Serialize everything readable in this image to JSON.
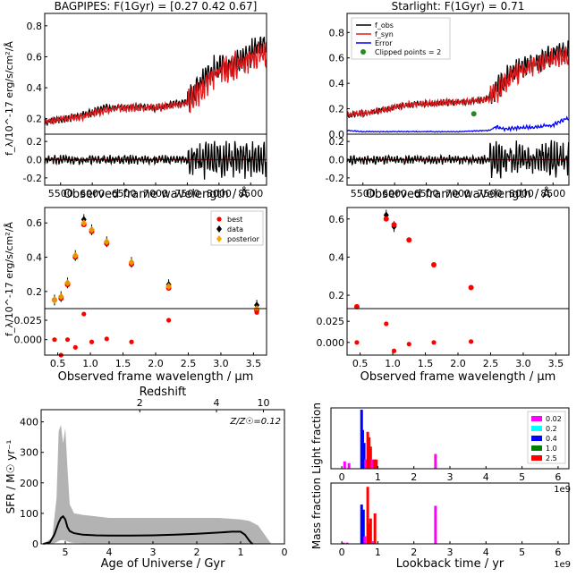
{
  "chart_data": [
    {
      "id": "bagpipes_spectrum",
      "type": "line",
      "title": "BAGPIPES: F(1Gyr) = [0.27 0.42 0.67]",
      "ylabel": "f_λ/10^-17 erg/s/cm²/Å",
      "xlim": [
        5250,
        8750
      ],
      "main": {
        "ylim": [
          0.1,
          0.88
        ],
        "yticks": [
          "0.2",
          "0.4",
          "0.6",
          "0.8"
        ],
        "series": [
          {
            "color": "#000000",
            "role": "observed",
            "x": [
              5250,
              5400,
              5600,
              5800,
              6000,
              6200,
              6400,
              6600,
              6800,
              7000,
              7200,
              7400,
              7500,
              7600,
              7700,
              7800,
              7900,
              8000,
              8100,
              8200,
              8300,
              8400,
              8500,
              8600,
              8700
            ],
            "y": [
              0.17,
              0.19,
              0.2,
              0.22,
              0.24,
              0.27,
              0.28,
              0.27,
              0.28,
              0.27,
              0.29,
              0.3,
              0.31,
              0.37,
              0.42,
              0.48,
              0.52,
              0.52,
              0.55,
              0.55,
              0.57,
              0.59,
              0.62,
              0.65,
              0.68
            ]
          },
          {
            "color": "#e41a1c",
            "role": "model",
            "x": [
              5250,
              5400,
              5600,
              5800,
              6000,
              6200,
              6400,
              6600,
              6800,
              7000,
              7200,
              7400,
              7500,
              7600,
              7700,
              7800,
              7900,
              8000,
              8100,
              8200,
              8300,
              8400,
              8500,
              8600,
              8700
            ],
            "y": [
              0.18,
              0.19,
              0.2,
              0.21,
              0.23,
              0.25,
              0.27,
              0.27,
              0.27,
              0.27,
              0.28,
              0.29,
              0.3,
              0.33,
              0.38,
              0.43,
              0.47,
              0.5,
              0.52,
              0.54,
              0.55,
              0.57,
              0.59,
              0.61,
              0.62
            ]
          }
        ]
      },
      "residual": {
        "ylim": [
          -0.28,
          0.28
        ],
        "yticks": [
          "-0.2",
          "0.0",
          "0.2"
        ],
        "amp_left": 0.05,
        "amp_right": 0.2
      },
      "xlabel": "Observed frame wavelength / Å",
      "xticks": [
        5500,
        6000,
        6500,
        7000,
        7500,
        8000,
        8500
      ]
    },
    {
      "id": "starlight_spectrum",
      "type": "line",
      "title": "Starlight: F(1Gyr) = 0.71",
      "xlim": [
        5250,
        8750
      ],
      "main": {
        "ylim": [
          0.0,
          0.95
        ],
        "yticks": [
          "0.0",
          "0.2",
          "0.4",
          "0.6",
          "0.8"
        ],
        "series": [
          {
            "name": "f_obs",
            "color": "#000000",
            "x": [
              5250,
              5400,
              5600,
              5800,
              6000,
              6200,
              6400,
              6600,
              6800,
              7000,
              7200,
              7400,
              7500,
              7600,
              7700,
              7800,
              7900,
              8000,
              8100,
              8200,
              8300,
              8400,
              8500,
              8600,
              8700
            ],
            "y": [
              0.14,
              0.16,
              0.17,
              0.19,
              0.21,
              0.23,
              0.24,
              0.24,
              0.25,
              0.25,
              0.26,
              0.27,
              0.29,
              0.35,
              0.41,
              0.46,
              0.5,
              0.52,
              0.54,
              0.56,
              0.58,
              0.6,
              0.62,
              0.64,
              0.66
            ]
          },
          {
            "name": "f_syn",
            "color": "#e41a1c",
            "x": [
              5250,
              5400,
              5600,
              5800,
              6000,
              6200,
              6400,
              6600,
              6800,
              7000,
              7200,
              7400,
              7500,
              7600,
              7700,
              7800,
              7900,
              8000,
              8100,
              8200,
              8300,
              8400,
              8500,
              8600,
              8700
            ],
            "y": [
              0.15,
              0.16,
              0.17,
              0.19,
              0.21,
              0.23,
              0.24,
              0.24,
              0.25,
              0.25,
              0.26,
              0.27,
              0.28,
              0.32,
              0.37,
              0.42,
              0.47,
              0.5,
              0.52,
              0.54,
              0.56,
              0.58,
              0.59,
              0.6,
              0.61
            ]
          },
          {
            "name": "Error",
            "color": "#0000ff",
            "x": [
              5250,
              5500,
              6000,
              6500,
              7000,
              7500,
              7600,
              7700,
              8000,
              8300,
              8500,
              8600,
              8700
            ],
            "y": [
              0.03,
              0.02,
              0.02,
              0.02,
              0.02,
              0.03,
              0.06,
              0.04,
              0.05,
              0.06,
              0.07,
              0.1,
              0.12
            ]
          }
        ],
        "clipped": {
          "name": "Clipped points = 2",
          "color": "#228b22",
          "x": [
            7250
          ],
          "y": [
            0.16
          ]
        }
      },
      "residual": {
        "ylim": [
          -0.28,
          0.28
        ],
        "yticks": [
          "-0.2",
          "0.0",
          "0.2"
        ],
        "amp_left": 0.05,
        "amp_right": 0.2
      },
      "xlabel": "Observed frame wavelength / Å",
      "xticks": [
        5500,
        6000,
        6500,
        7000,
        7500,
        8000,
        8500
      ]
    },
    {
      "id": "bagpipes_photometry",
      "type": "scatter",
      "xlim": [
        0.3,
        3.7
      ],
      "ylabel": "f_λ/10^-17 erg/s/cm²/Å",
      "main": {
        "ylim": [
          0.1,
          0.69
        ],
        "yticks": [
          "0.2",
          "0.4",
          "0.6"
        ],
        "series": [
          {
            "name": "best",
            "color": "#ff0000",
            "x": [
              0.45,
              0.55,
              0.65,
              0.77,
              0.9,
              1.02,
              1.25,
              1.63,
              2.2,
              3.55
            ],
            "y": [
              0.15,
              0.16,
              0.24,
              0.4,
              0.59,
              0.55,
              0.48,
              0.36,
              0.22,
              0.09
            ]
          },
          {
            "name": "data",
            "color": "#000000",
            "x": [
              0.45,
              0.55,
              0.65,
              0.77,
              0.9,
              1.02,
              1.25,
              1.63,
              2.2,
              3.55
            ],
            "y": [
              0.15,
              0.17,
              0.25,
              0.41,
              0.62,
              0.56,
              0.49,
              0.37,
              0.24,
              0.12
            ]
          },
          {
            "name": "posterior",
            "color": "#ffa500",
            "x": [
              0.45,
              0.55,
              0.65,
              0.77,
              0.9,
              1.02,
              1.25,
              1.63,
              2.2,
              3.55
            ],
            "y": [
              0.15,
              0.17,
              0.25,
              0.41,
              0.6,
              0.56,
              0.49,
              0.37,
              0.23,
              0.1
            ]
          }
        ]
      },
      "residual": {
        "ylim": [
          -0.02,
          0.04
        ],
        "yticks": [
          "0.000",
          "0.025"
        ],
        "series": [
          {
            "color": "#ff0000",
            "x": [
              0.45,
              0.55,
              0.65,
              0.77,
              0.9,
              1.02,
              1.25,
              1.63,
              2.2,
              3.55
            ],
            "y": [
              0.0,
              -0.02,
              0.0,
              -0.01,
              0.033,
              -0.003,
              0.001,
              -0.003,
              0.025,
              0.035
            ]
          }
        ]
      },
      "xlabel": "Observed frame wavelength / μm",
      "xticks": [
        0.5,
        1.0,
        1.5,
        2.0,
        2.5,
        3.0,
        3.5
      ]
    },
    {
      "id": "starlight_photometry",
      "type": "scatter",
      "xlim": [
        0.3,
        3.7
      ],
      "main": {
        "ylim": [
          0.13,
          0.66
        ],
        "yticks": [
          "0.2",
          "0.4",
          "0.6"
        ],
        "series": [
          {
            "name": "data",
            "color": "#000000",
            "x": [
              0.9,
              1.02
            ],
            "y": [
              0.62,
              0.56
            ]
          },
          {
            "name": "best",
            "color": "#ff0000",
            "x": [
              0.45,
              0.9,
              1.02,
              1.25,
              1.63,
              2.2
            ],
            "y": [
              0.14,
              0.6,
              0.57,
              0.49,
              0.36,
              0.24
            ]
          }
        ]
      },
      "residual": {
        "ylim": [
          -0.015,
          0.04
        ],
        "yticks": [
          "0.000",
          "0.025"
        ],
        "series": [
          {
            "color": "#ff0000",
            "x": [
              0.45,
              0.9,
              1.02,
              1.25,
              1.63,
              2.2
            ],
            "y": [
              0.0,
              0.022,
              -0.01,
              -0.002,
              0.0,
              0.001
            ]
          }
        ]
      },
      "xlabel": "Observed frame wavelength / μm",
      "xticks": [
        0.5,
        1.0,
        1.5,
        2.0,
        2.5,
        3.0,
        3.5
      ]
    },
    {
      "id": "sfh",
      "type": "area",
      "xlabel": "Age of Universe / Gyr",
      "ylabel": "SFR / M☉ yr⁻¹",
      "top_xlabel": "Redshift",
      "top_ticks": [
        {
          "label": "2",
          "age": 3.3
        },
        {
          "label": "4",
          "age": 1.55
        },
        {
          "label": "10",
          "age": 0.48
        }
      ],
      "annotation": "Z/Z☉=0.12",
      "xlim": [
        5.55,
        0
      ],
      "ylim": [
        0,
        440
      ],
      "xticks": [
        5,
        4,
        3,
        2,
        1,
        0
      ],
      "yticks": [
        0,
        100,
        200,
        300,
        400
      ],
      "band_upper": {
        "x": [
          5.5,
          5.3,
          5.2,
          5.15,
          5.1,
          5.05,
          5.0,
          4.95,
          4.9,
          4.8,
          4.6,
          4.3,
          4.0,
          3.5,
          3.0,
          2.5,
          2.0,
          1.5,
          1.0,
          0.8,
          0.6,
          0.45,
          0.35,
          0.3
        ],
        "y": [
          0,
          20,
          150,
          370,
          390,
          330,
          380,
          250,
          130,
          100,
          95,
          90,
          85,
          85,
          85,
          85,
          85,
          85,
          80,
          75,
          60,
          30,
          10,
          0
        ]
      },
      "band_lower": {
        "x": [
          5.5,
          5.3,
          5.2,
          5.15,
          5.1,
          5.05,
          5.0,
          4.95,
          4.9,
          4.8,
          4.6,
          4.3,
          4.0,
          3.5,
          3.0,
          2.5,
          2.0,
          1.5,
          1.0,
          0.8,
          0.6,
          0.45,
          0.35,
          0.3
        ],
        "y": [
          0,
          0,
          5,
          10,
          12,
          12,
          10,
          8,
          5,
          3,
          2,
          2,
          2,
          2,
          2,
          2,
          2,
          2,
          1,
          1,
          0,
          0,
          0,
          0
        ]
      },
      "median": {
        "x": [
          5.5,
          5.35,
          5.25,
          5.15,
          5.1,
          5.05,
          5.0,
          4.95,
          4.9,
          4.8,
          4.6,
          4.3,
          4.0,
          3.5,
          3.0,
          2.5,
          2.0,
          1.5,
          1.2,
          1.0,
          0.9,
          0.8,
          0.75,
          0.72
        ],
        "y": [
          0,
          5,
          30,
          70,
          85,
          90,
          80,
          55,
          42,
          35,
          30,
          28,
          27,
          27,
          28,
          30,
          33,
          37,
          40,
          40,
          30,
          10,
          2,
          0
        ]
      }
    },
    {
      "id": "light_fraction",
      "type": "bar",
      "ylabel": "Light fraction",
      "xlim": [
        -0.3,
        6.3
      ],
      "x_multiplier": "1e9",
      "xticks": [
        0,
        1,
        2,
        3,
        4,
        5,
        6
      ],
      "legend": [
        {
          "name": "0.02",
          "color": "#ff00ff"
        },
        {
          "name": "0.2",
          "color": "#00ffff"
        },
        {
          "name": "0.4",
          "color": "#0000ff"
        },
        {
          "name": "1.0",
          "color": "#008000"
        },
        {
          "name": "2.5",
          "color": "#ff0000"
        }
      ],
      "ylim": [
        0,
        33
      ],
      "bars": [
        {
          "x": 0.08,
          "value": 4.0,
          "color": "#ff00ff"
        },
        {
          "x": 0.2,
          "value": 3.0,
          "color": "#ff00ff"
        },
        {
          "x": 0.55,
          "value": 32.0,
          "color": "#0000ff"
        },
        {
          "x": 0.58,
          "value": 21.0,
          "color": "#0000ff"
        },
        {
          "x": 0.62,
          "value": 14.0,
          "color": "#0000ff"
        },
        {
          "x": 0.66,
          "value": 5.0,
          "color": "#ff00ff"
        },
        {
          "x": 0.72,
          "value": 20.0,
          "color": "#ff0000"
        },
        {
          "x": 0.76,
          "value": 17.0,
          "color": "#ff0000"
        },
        {
          "x": 0.8,
          "value": 12.0,
          "color": "#ff0000"
        },
        {
          "x": 0.84,
          "value": 5.0,
          "color": "#ff00ff"
        },
        {
          "x": 0.9,
          "value": 5.0,
          "color": "#ff0000"
        },
        {
          "x": 0.96,
          "value": 5.0,
          "color": "#ff0000"
        },
        {
          "x": 2.6,
          "value": 8.0,
          "color": "#ff00ff"
        }
      ]
    },
    {
      "id": "mass_fraction",
      "type": "bar",
      "ylabel": "Mass fraction",
      "xlabel": "Lookback time / yr",
      "xlim": [
        -0.3,
        6.3
      ],
      "x_multiplier": "1e9",
      "xticks": [
        0,
        1,
        2,
        3,
        4,
        5,
        6
      ],
      "ylim": [
        0,
        24
      ],
      "bars": [
        {
          "x": 0.05,
          "value": 0.5,
          "color": "#ff00ff"
        },
        {
          "x": 0.15,
          "value": 0.5,
          "color": "#ff00ff"
        },
        {
          "x": 0.55,
          "value": 15.5,
          "color": "#0000ff"
        },
        {
          "x": 0.6,
          "value": 13.5,
          "color": "#0000ff"
        },
        {
          "x": 0.64,
          "value": 3.0,
          "color": "#ff00ff"
        },
        {
          "x": 0.72,
          "value": 22.5,
          "color": "#ff0000"
        },
        {
          "x": 0.76,
          "value": 8.0,
          "color": "#ff0000"
        },
        {
          "x": 0.8,
          "value": 10.0,
          "color": "#ff0000"
        },
        {
          "x": 0.85,
          "value": 1.0,
          "color": "#ff00ff"
        },
        {
          "x": 0.92,
          "value": 12.0,
          "color": "#ff0000"
        },
        {
          "x": 2.6,
          "value": 15.0,
          "color": "#ff00ff"
        }
      ]
    }
  ]
}
